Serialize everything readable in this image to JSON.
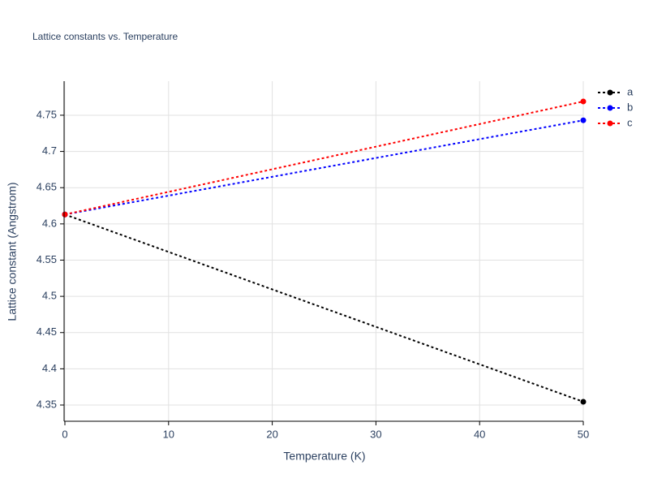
{
  "chart_data": {
    "type": "line",
    "title": "Lattice constants vs. Temperature",
    "x_label": "Temperature (K)",
    "y_label": "Lattice constant (Angstrom)",
    "x": [
      0,
      50
    ],
    "series": [
      {
        "name": "a",
        "color": "#000000",
        "values": [
          4.613,
          4.3545
        ]
      },
      {
        "name": "b",
        "color": "#0000ff",
        "values": [
          4.613,
          4.743
        ]
      },
      {
        "name": "c",
        "color": "#ff0000",
        "values": [
          4.613,
          4.769
        ]
      }
    ],
    "xlim": [
      0,
      50
    ],
    "xticks": [
      0,
      10,
      20,
      30,
      40,
      50
    ],
    "ylim": [
      4.3276,
      4.797
    ],
    "yticks": [
      4.35,
      4.4,
      4.45,
      4.5,
      4.55,
      4.6,
      4.65,
      4.7,
      4.75
    ],
    "grid": true,
    "legend": "top-right",
    "line_style": "dot"
  }
}
